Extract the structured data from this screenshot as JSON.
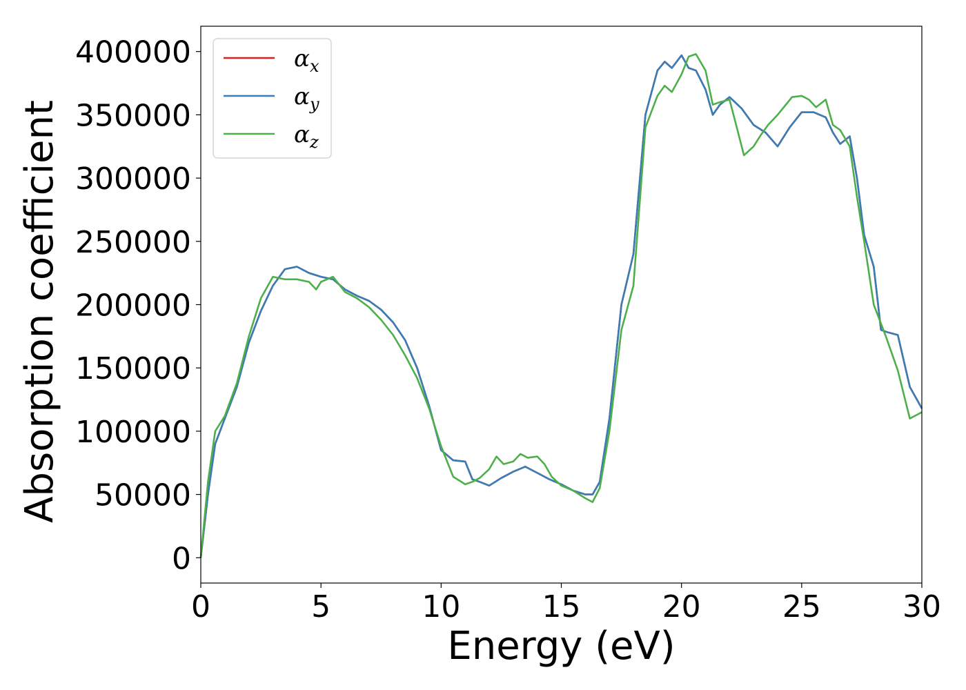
{
  "chart_data": {
    "type": "line",
    "xlabel": "Energy (eV)",
    "ylabel": "Absorption coefficient",
    "xlim": [
      0,
      30
    ],
    "ylim": [
      -20000,
      420000
    ],
    "xticks": [
      0,
      5,
      10,
      15,
      20,
      25,
      30
    ],
    "yticks": [
      0,
      50000,
      100000,
      150000,
      200000,
      250000,
      300000,
      350000,
      400000
    ],
    "grid": false,
    "legend_position": "upper-left",
    "series": [
      {
        "name": "α",
        "subscript": "x",
        "color": "#e41a1c",
        "x": [
          0,
          0.3,
          0.6,
          1.0,
          1.5,
          2.0,
          2.5,
          3.0,
          3.5,
          4.0,
          4.5,
          5.0,
          5.5,
          6.0,
          6.5,
          7.0,
          7.5,
          8.0,
          8.5,
          9.0,
          9.5,
          10.0,
          10.5,
          11.0,
          11.3,
          11.6,
          12.0,
          12.5,
          13.0,
          13.5,
          14.0,
          14.5,
          15.0,
          15.5,
          16.0,
          16.3,
          16.6,
          17.0,
          17.5,
          18.0,
          18.5,
          19.0,
          19.3,
          19.6,
          20.0,
          20.3,
          20.6,
          21.0,
          21.3,
          21.6,
          22.0,
          22.5,
          23.0,
          23.5,
          24.0,
          24.5,
          25.0,
          25.5,
          26.0,
          26.3,
          26.6,
          27.0,
          27.3,
          27.6,
          28.0,
          28.3,
          28.6,
          29.0,
          29.5,
          30.0
        ],
        "y": [
          0,
          50000,
          90000,
          110000,
          135000,
          170000,
          195000,
          215000,
          228000,
          230000,
          225000,
          222000,
          220000,
          212000,
          207000,
          203000,
          196000,
          186000,
          172000,
          150000,
          120000,
          85000,
          77000,
          76000,
          62000,
          60000,
          57000,
          63000,
          68000,
          72000,
          67000,
          62000,
          58000,
          53000,
          50000,
          50000,
          60000,
          110000,
          200000,
          240000,
          350000,
          385000,
          392000,
          387000,
          397000,
          387000,
          385000,
          370000,
          350000,
          358000,
          364000,
          355000,
          342000,
          336000,
          325000,
          340000,
          352000,
          352000,
          348000,
          336000,
          327000,
          333000,
          300000,
          255000,
          230000,
          180000,
          178000,
          176000,
          135000,
          118000
        ]
      },
      {
        "name": "α",
        "subscript": "y",
        "color": "#377eb8",
        "x": [
          0,
          0.3,
          0.6,
          1.0,
          1.5,
          2.0,
          2.5,
          3.0,
          3.5,
          4.0,
          4.5,
          5.0,
          5.5,
          6.0,
          6.5,
          7.0,
          7.5,
          8.0,
          8.5,
          9.0,
          9.5,
          10.0,
          10.5,
          11.0,
          11.3,
          11.6,
          12.0,
          12.5,
          13.0,
          13.5,
          14.0,
          14.5,
          15.0,
          15.5,
          16.0,
          16.3,
          16.6,
          17.0,
          17.5,
          18.0,
          18.5,
          19.0,
          19.3,
          19.6,
          20.0,
          20.3,
          20.6,
          21.0,
          21.3,
          21.6,
          22.0,
          22.5,
          23.0,
          23.5,
          24.0,
          24.5,
          25.0,
          25.5,
          26.0,
          26.3,
          26.6,
          27.0,
          27.3,
          27.6,
          28.0,
          28.3,
          28.6,
          29.0,
          29.5,
          30.0
        ],
        "y": [
          0,
          50000,
          90000,
          110000,
          135000,
          170000,
          195000,
          215000,
          228000,
          230000,
          225000,
          222000,
          220000,
          212000,
          207000,
          203000,
          196000,
          186000,
          172000,
          150000,
          120000,
          85000,
          77000,
          76000,
          62000,
          60000,
          57000,
          63000,
          68000,
          72000,
          67000,
          62000,
          58000,
          53000,
          50000,
          50000,
          60000,
          110000,
          200000,
          240000,
          350000,
          385000,
          392000,
          387000,
          397000,
          387000,
          385000,
          370000,
          350000,
          358000,
          364000,
          355000,
          342000,
          336000,
          325000,
          340000,
          352000,
          352000,
          348000,
          336000,
          327000,
          333000,
          300000,
          255000,
          230000,
          180000,
          178000,
          176000,
          135000,
          118000
        ]
      },
      {
        "name": "α",
        "subscript": "z",
        "color": "#4daf4a",
        "x": [
          0,
          0.3,
          0.6,
          1.0,
          1.5,
          2.0,
          2.5,
          3.0,
          3.5,
          4.0,
          4.5,
          4.8,
          5.0,
          5.5,
          6.0,
          6.5,
          7.0,
          7.5,
          8.0,
          8.5,
          9.0,
          9.5,
          10.0,
          10.5,
          11.0,
          11.3,
          11.6,
          12.0,
          12.3,
          12.6,
          13.0,
          13.3,
          13.6,
          14.0,
          14.3,
          14.6,
          15.0,
          15.5,
          16.0,
          16.3,
          16.6,
          17.0,
          17.5,
          18.0,
          18.5,
          19.0,
          19.3,
          19.6,
          20.0,
          20.3,
          20.6,
          21.0,
          21.3,
          21.6,
          22.0,
          22.3,
          22.6,
          23.0,
          23.3,
          23.6,
          24.0,
          24.3,
          24.6,
          25.0,
          25.3,
          25.6,
          26.0,
          26.3,
          26.6,
          27.0,
          27.3,
          27.6,
          28.0,
          28.5,
          29.0,
          29.5,
          30.0
        ],
        "y": [
          0,
          60000,
          100000,
          112000,
          138000,
          175000,
          205000,
          222000,
          220000,
          220000,
          218000,
          212000,
          218000,
          222000,
          210000,
          205000,
          198000,
          188000,
          176000,
          160000,
          142000,
          118000,
          88000,
          64000,
          58000,
          60000,
          63000,
          70000,
          80000,
          74000,
          76000,
          82000,
          79000,
          80000,
          74000,
          64000,
          57000,
          53000,
          47000,
          44000,
          55000,
          100000,
          180000,
          215000,
          340000,
          365000,
          373000,
          368000,
          382000,
          396000,
          398000,
          385000,
          358000,
          360000,
          362000,
          340000,
          318000,
          325000,
          334000,
          342000,
          350000,
          357000,
          364000,
          365000,
          362000,
          356000,
          362000,
          342000,
          338000,
          325000,
          285000,
          250000,
          200000,
          175000,
          148000,
          110000,
          115000
        ]
      }
    ]
  }
}
